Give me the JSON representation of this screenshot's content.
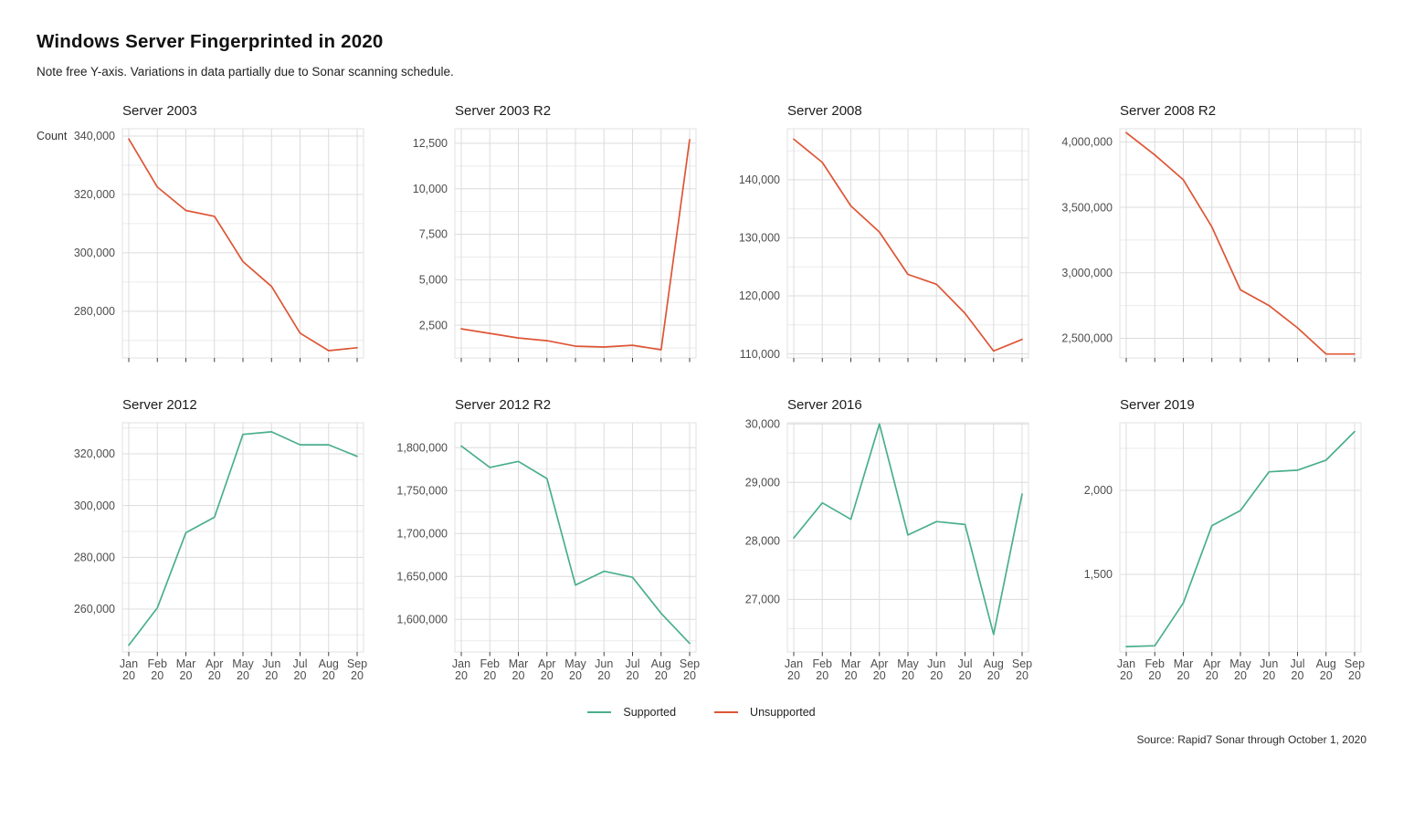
{
  "page": {
    "title": "Windows Server Fingerprinted in 2020",
    "subtitle": "Note free Y-axis. Variations in data partially due to Sonar scanning schedule.",
    "caption": "Source: Rapid7 Sonar through October 1, 2020"
  },
  "colors": {
    "supported": "#4aae8f",
    "unsupported": "#de5535"
  },
  "legend": {
    "items": [
      {
        "label": "Supported",
        "series": "supported"
      },
      {
        "label": "Unsupported",
        "series": "unsupported"
      }
    ]
  },
  "chart_data": {
    "type": "line",
    "layout": "small-multiples-2x4",
    "title": "Windows Server Fingerprinted in 2020",
    "subtitle": "Note free Y-axis. Variations in data partially due to Sonar scanning schedule.",
    "y_axis_title": "Count",
    "grid": true,
    "legend_position": "bottom",
    "x_categories": [
      "Jan 20",
      "Feb 20",
      "Mar 20",
      "Apr 20",
      "May 20",
      "Jun 20",
      "Jul 20",
      "Aug 20",
      "Sep 20"
    ],
    "facets": [
      {
        "title": "Server 2003",
        "series": "unsupported",
        "values": [
          339000,
          322500,
          314500,
          312500,
          297000,
          288500,
          272500,
          266500,
          267500
        ],
        "ylim": [
          264000,
          342500
        ],
        "ytick_values": [
          280000,
          300000,
          320000,
          340000
        ],
        "ytick_labels": [
          "280,000",
          "300,000",
          "320,000",
          "340,000"
        ],
        "minor_ytick_values": [
          270000,
          290000,
          310000,
          330000
        ],
        "show_x_labels": false,
        "show_y_axis_title": true
      },
      {
        "title": "Server 2003 R2",
        "series": "unsupported",
        "values": [
          2300,
          2050,
          1800,
          1650,
          1350,
          1300,
          1400,
          1150,
          12700
        ],
        "ylim": [
          700,
          13300
        ],
        "ytick_values": [
          2500,
          5000,
          7500,
          10000,
          12500
        ],
        "ytick_labels": [
          "2,500",
          "5,000",
          "7,500",
          "10,000",
          "12,500"
        ],
        "minor_ytick_values": [
          1250,
          3750,
          6250,
          8750,
          11250
        ],
        "show_x_labels": false,
        "show_y_axis_title": false
      },
      {
        "title": "Server 2008",
        "series": "unsupported",
        "values": [
          147000,
          143000,
          135500,
          131000,
          123700,
          122000,
          117000,
          110500,
          112500
        ],
        "ylim": [
          109300,
          148800
        ],
        "ytick_values": [
          110000,
          120000,
          130000,
          140000
        ],
        "ytick_labels": [
          "110,000",
          "120,000",
          "130,000",
          "140,000"
        ],
        "minor_ytick_values": [
          115000,
          125000,
          135000,
          145000
        ],
        "show_x_labels": false,
        "show_y_axis_title": false
      },
      {
        "title": "Server 2008 R2",
        "series": "unsupported",
        "values": [
          4070000,
          3900000,
          3710000,
          3350000,
          2870000,
          2750000,
          2580000,
          2380000,
          2380000
        ],
        "ylim": [
          2350000,
          4100000
        ],
        "ytick_values": [
          2500000,
          3000000,
          3500000,
          4000000
        ],
        "ytick_labels": [
          "2,500,000",
          "3,000,000",
          "3,500,000",
          "4,000,000"
        ],
        "minor_ytick_values": [
          2750000,
          3250000,
          3750000
        ],
        "show_x_labels": false,
        "show_y_axis_title": false
      },
      {
        "title": "Server 2012",
        "series": "supported",
        "values": [
          246000,
          260500,
          289500,
          295500,
          327500,
          328500,
          323500,
          323500,
          319000
        ],
        "ylim": [
          243400,
          332000
        ],
        "ytick_values": [
          260000,
          280000,
          300000,
          320000
        ],
        "ytick_labels": [
          "260,000",
          "280,000",
          "300,000",
          "320,000"
        ],
        "minor_ytick_values": [
          250000,
          270000,
          290000,
          310000,
          330000
        ],
        "show_x_labels": true,
        "show_y_axis_title": false
      },
      {
        "title": "Server 2012 R2",
        "series": "supported",
        "values": [
          1802000,
          1777000,
          1784000,
          1764000,
          1640000,
          1656000,
          1649000,
          1607000,
          1572000
        ],
        "ylim": [
          1562000,
          1829000
        ],
        "ytick_values": [
          1600000,
          1650000,
          1700000,
          1750000,
          1800000
        ],
        "ytick_labels": [
          "1,600,000",
          "1,650,000",
          "1,700,000",
          "1,750,000",
          "1,800,000"
        ],
        "minor_ytick_values": [
          1575000,
          1625000,
          1675000,
          1725000,
          1775000
        ],
        "show_x_labels": true,
        "show_y_axis_title": false
      },
      {
        "title": "Server 2016",
        "series": "supported",
        "values": [
          28050,
          28650,
          28370,
          30000,
          28100,
          28330,
          28280,
          26400,
          28800
        ],
        "ylim": [
          26100,
          30020
        ],
        "ytick_values": [
          27000,
          28000,
          29000,
          30000
        ],
        "ytick_labels": [
          "27,000",
          "28,000",
          "29,000",
          "30,000"
        ],
        "minor_ytick_values": [
          26500,
          27500,
          28500,
          29500
        ],
        "show_x_labels": true,
        "show_y_axis_title": false
      },
      {
        "title": "Server 2019",
        "series": "supported",
        "values": [
          1070,
          1075,
          1330,
          1790,
          1880,
          2110,
          2120,
          2180,
          2350
        ],
        "ylim": [
          1038,
          2402
        ],
        "ytick_values": [
          1500,
          2000
        ],
        "ytick_labels": [
          "1,500",
          "2,000"
        ],
        "minor_ytick_values": [
          1250,
          1750,
          2250
        ],
        "show_x_labels": true,
        "show_y_axis_title": false
      }
    ]
  }
}
